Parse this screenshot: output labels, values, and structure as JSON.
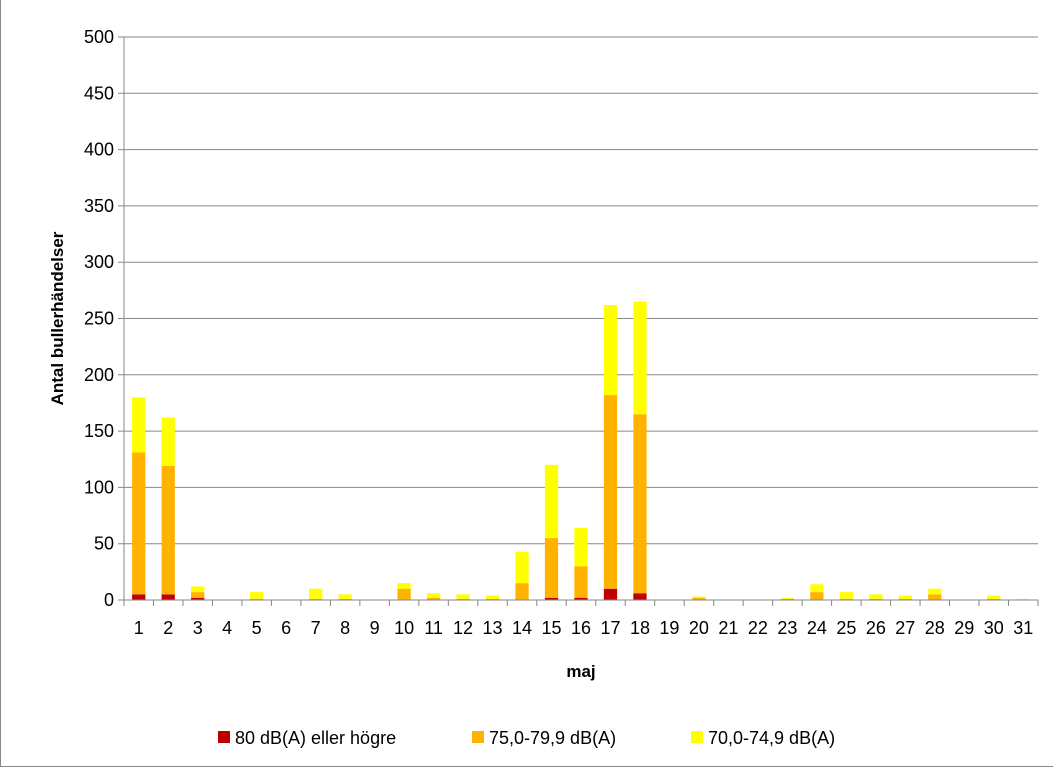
{
  "chart_data": {
    "type": "bar",
    "stacked": true,
    "title": "",
    "xlabel": "maj",
    "ylabel": "Antal bullerhändelser",
    "ylim": [
      0,
      500
    ],
    "yticks": [
      "0",
      "50",
      "100",
      "150",
      "200",
      "250",
      "300",
      "350",
      "400",
      "450",
      "500"
    ],
    "grid": true,
    "legend_position": "bottom",
    "categories": [
      "1",
      "2",
      "3",
      "4",
      "5",
      "6",
      "7",
      "8",
      "9",
      "10",
      "11",
      "12",
      "13",
      "14",
      "15",
      "16",
      "17",
      "18",
      "19",
      "20",
      "21",
      "22",
      "23",
      "24",
      "25",
      "26",
      "27",
      "28",
      "29",
      "30",
      "31"
    ],
    "series": [
      {
        "name": "80 dB(A) eller högre",
        "color": "#c00000",
        "values": [
          5,
          5,
          2,
          0,
          0,
          0,
          0,
          0,
          0,
          0,
          0,
          0,
          0,
          0,
          2,
          2,
          10,
          6,
          0,
          0,
          0,
          0,
          0,
          0,
          0,
          0,
          0,
          0,
          0,
          0,
          0
        ]
      },
      {
        "name": "75,0-79,9 dB(A)",
        "color": "#ffb300",
        "values": [
          126,
          114,
          5,
          0,
          1,
          0,
          1,
          1,
          0,
          10,
          2,
          1,
          1,
          15,
          53,
          28,
          172,
          159,
          0,
          2,
          0,
          0,
          1,
          7,
          1,
          1,
          1,
          5,
          0,
          1,
          0
        ]
      },
      {
        "name": "70,0-74,9 dB(A)",
        "color": "#ffff00",
        "values": [
          49,
          43,
          5,
          0,
          6,
          0,
          9,
          4,
          0,
          5,
          4,
          4,
          3,
          28,
          65,
          34,
          80,
          100,
          0,
          1,
          0,
          0,
          1,
          7,
          6,
          4,
          3,
          5,
          0,
          3,
          1
        ]
      }
    ]
  }
}
